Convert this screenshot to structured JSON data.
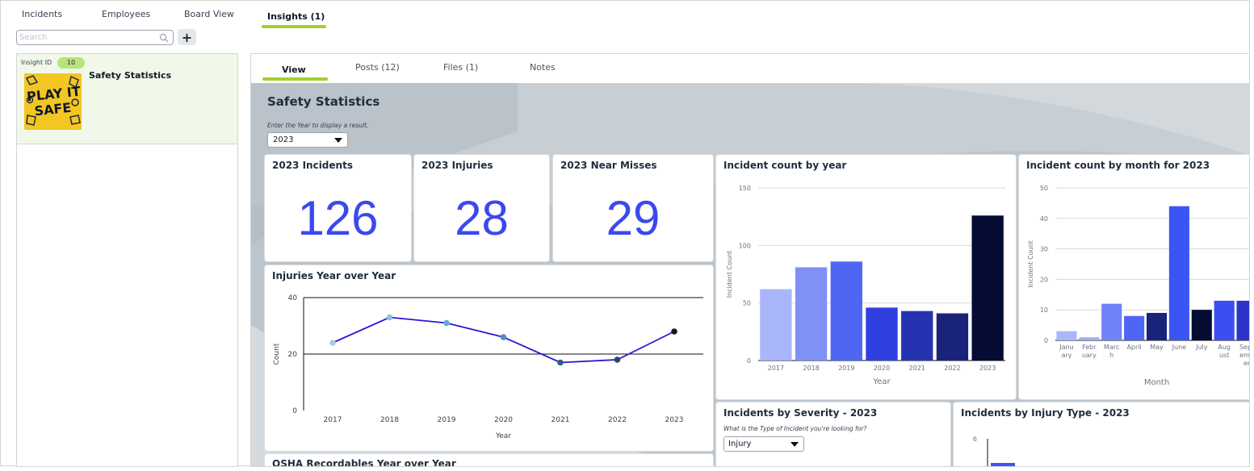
{
  "top_tabs": [
    "Incidents",
    "Employees",
    "Board View",
    "Insights (1)"
  ],
  "search": {
    "placeholder": "Search"
  },
  "add_button": "+",
  "card": {
    "id_label": "Insight ID",
    "id_value": "10",
    "title": "Safety Statistics",
    "thumb_text": [
      "PLAY IT",
      "SAFE"
    ]
  },
  "sub_tabs": [
    "View",
    "Posts (12)",
    "Files (1)",
    "Notes"
  ],
  "dashboard": {
    "title": "Safety Statistics",
    "year_hint": "Enter the Year to display a result.",
    "year_value": "2023",
    "kpis": [
      {
        "title": "2023 Incidents",
        "value": "126"
      },
      {
        "title": "2023 Injuries",
        "value": "28"
      },
      {
        "title": "2023 Near Misses",
        "value": "29"
      }
    ],
    "severity_title": "Incidents by Severity - 2023",
    "severity_hint": "What is the Type of Incident you're looking for?",
    "severity_value": "Injury",
    "injury_type_title": "Incidents by Injury Type - 2023",
    "osha_title": "OSHA Recordables Year over Year"
  },
  "chart_data": [
    {
      "type": "line",
      "title": "Injuries Year over Year",
      "x": [
        "2017",
        "2018",
        "2019",
        "2020",
        "2021",
        "2022",
        "2023"
      ],
      "values": [
        24,
        33,
        31,
        26,
        17,
        18,
        28
      ],
      "xlabel": "Year",
      "ylabel": "Count",
      "ylim": [
        0,
        40
      ],
      "yticks": [
        0,
        20,
        40
      ],
      "line_color": "#2a17d9",
      "point_colors": [
        "#a6cbe8",
        "#8dbfe0",
        "#6aa9d4",
        "#4e8fb8",
        "#2e5f82",
        "#26475f",
        "#111827"
      ]
    },
    {
      "type": "bar",
      "title": "Incident count by year",
      "categories": [
        "2017",
        "2018",
        "2019",
        "2020",
        "2021",
        "2022",
        "2023"
      ],
      "values": [
        62,
        81,
        86,
        46,
        43,
        41,
        126
      ],
      "xlabel": "Year",
      "ylabel": "Incident Count",
      "ylim": [
        0,
        150
      ],
      "yticks": [
        0,
        50,
        100,
        150
      ],
      "colors": [
        "#aab6fb",
        "#7f90f7",
        "#4e66f4",
        "#3040e0",
        "#2633b0",
        "#1a237a",
        "#050c33"
      ]
    },
    {
      "type": "bar",
      "title": "Incident count by month for 2023",
      "categories": [
        [
          "Janu",
          "ary"
        ],
        [
          "Febr",
          "uary"
        ],
        [
          "Marc",
          "h"
        ],
        [
          "April"
        ],
        [
          "May"
        ],
        [
          "June"
        ],
        [
          "July"
        ],
        [
          "Aug",
          "ust"
        ],
        [
          "Sept",
          "emb",
          "er"
        ]
      ],
      "values": [
        3,
        1,
        12,
        8,
        9,
        44,
        10,
        13,
        13
      ],
      "xlabel": "Month",
      "ylabel": "Incident Count",
      "ylim": [
        0,
        50
      ],
      "yticks": [
        0,
        10,
        20,
        30,
        40,
        50
      ],
      "colors": [
        "#aab6fb",
        "#a0acfa",
        "#6f82f6",
        "#4f65f3",
        "#1a237a",
        "#3b55f5",
        "#050c33",
        "#3b4ff0",
        "#2b36c9"
      ]
    },
    {
      "type": "bar",
      "title": "Incidents by Injury Type - 2023",
      "categories": [],
      "values": [],
      "ylim": [
        0,
        6
      ],
      "yticks": [
        6
      ],
      "colors": [
        "#3b55f5"
      ]
    }
  ]
}
